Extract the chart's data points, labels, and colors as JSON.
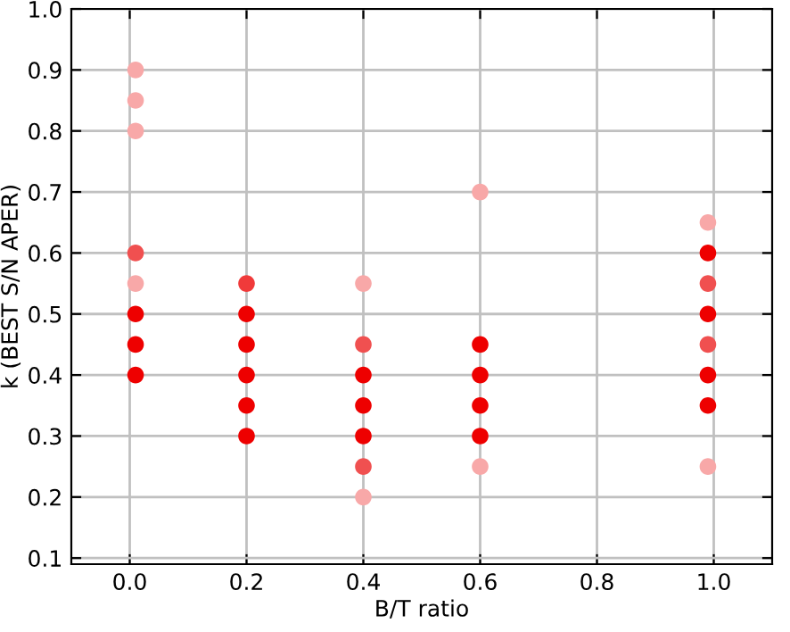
{
  "chart_data": {
    "type": "scatter",
    "xlabel": "B/T ratio",
    "ylabel": "k (BEST S/N APER)",
    "x": [
      0.01,
      0.01,
      0.01,
      0.01,
      0.01,
      0.01,
      0.01,
      0.01,
      0.2,
      0.2,
      0.2,
      0.2,
      0.2,
      0.2,
      0.4,
      0.4,
      0.4,
      0.4,
      0.4,
      0.4,
      0.4,
      0.6,
      0.6,
      0.6,
      0.6,
      0.6,
      0.6,
      0.99,
      0.99,
      0.99,
      0.99,
      0.99,
      0.99,
      0.99,
      0.99
    ],
    "values": [
      0.9,
      0.85,
      0.8,
      0.6,
      0.55,
      0.5,
      0.45,
      0.4,
      0.55,
      0.5,
      0.45,
      0.4,
      0.35,
      0.3,
      0.55,
      0.45,
      0.4,
      0.35,
      0.3,
      0.25,
      0.2,
      0.7,
      0.45,
      0.4,
      0.35,
      0.3,
      0.25,
      0.65,
      0.6,
      0.55,
      0.5,
      0.45,
      0.4,
      0.35,
      0.25
    ],
    "colors": [
      "#f8a8a8",
      "#f8a8a8",
      "#f8a8a8",
      "#f05050",
      "#f8a8a8",
      "#ee0000",
      "#ee0000",
      "#ee0000",
      "#f03a3a",
      "#ee0000",
      "#ee0000",
      "#ee0000",
      "#ee0000",
      "#ee0000",
      "#f8a8a8",
      "#f05050",
      "#ee0000",
      "#ee0000",
      "#ee0000",
      "#f05050",
      "#f8a8a8",
      "#f8a8a8",
      "#ee0000",
      "#ee0000",
      "#ee0000",
      "#ee0000",
      "#f8a8a8",
      "#f8a8a8",
      "#ee0000",
      "#f05050",
      "#ee0000",
      "#f05050",
      "#ee0000",
      "#ee0000",
      "#f8a8a8"
    ],
    "marker": "circle",
    "xlim": [
      -0.1,
      1.1
    ],
    "xticks": [
      {
        "value": 0.0,
        "label": "0.0"
      },
      0.2,
      0.4,
      0.6,
      0.8,
      {
        "value": 1.0,
        "label": "1.0"
      }
    ],
    "ylim": [
      0.09,
      1.0
    ],
    "yticks": [
      0.1,
      0.2,
      0.3,
      0.4,
      0.5,
      0.6,
      0.7,
      0.8,
      0.9,
      {
        "value": 1.0,
        "label": "1.0"
      }
    ],
    "grid": true
  }
}
